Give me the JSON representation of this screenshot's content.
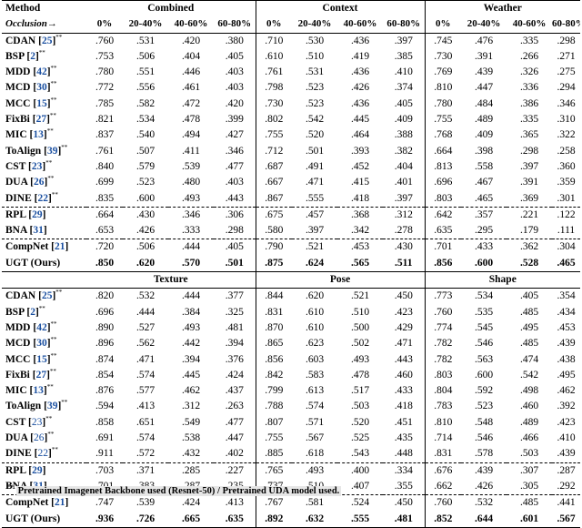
{
  "header": {
    "method": "Method",
    "occlusion": "Occlusion→",
    "bins": [
      "0%",
      "20-40%",
      "40-60%",
      "60-80%"
    ]
  },
  "panels": [
    {
      "groups": [
        "Combined",
        "Context",
        "Weather"
      ],
      "rows": [
        {
          "name": "CDAN",
          "ref": "25",
          "ref_style": "blue",
          "ast": true,
          "bold": false,
          "values": [
            ".760",
            ".531",
            ".420",
            ".380",
            ".710",
            ".530",
            ".436",
            ".397",
            ".745",
            ".476",
            ".335",
            ".298"
          ]
        },
        {
          "name": "BSP",
          "ref": "2",
          "ref_style": "blue",
          "ast": true,
          "bold": false,
          "values": [
            ".753",
            ".506",
            ".404",
            ".405",
            ".610",
            ".510",
            ".419",
            ".385",
            ".730",
            ".391",
            ".266",
            ".271"
          ]
        },
        {
          "name": "MDD",
          "ref": "42",
          "ref_style": "blue",
          "ast": true,
          "bold": false,
          "values": [
            ".780",
            ".551",
            ".446",
            ".403",
            ".761",
            ".531",
            ".436",
            ".410",
            ".769",
            ".439",
            ".326",
            ".275"
          ]
        },
        {
          "name": "MCD",
          "ref": "30",
          "ref_style": "blue",
          "ast": true,
          "bold": false,
          "values": [
            ".772",
            ".556",
            ".461",
            ".403",
            ".798",
            ".523",
            ".426",
            ".374",
            ".810",
            ".447",
            ".336",
            ".294"
          ]
        },
        {
          "name": "MCC",
          "ref": "15",
          "ref_style": "blue",
          "ast": true,
          "bold": false,
          "values": [
            ".785",
            ".582",
            ".472",
            ".420",
            ".730",
            ".523",
            ".436",
            ".405",
            ".780",
            ".484",
            ".386",
            ".346"
          ]
        },
        {
          "name": "FixBi",
          "ref": "27",
          "ref_style": "blue",
          "ast": true,
          "bold": false,
          "values": [
            ".821",
            ".534",
            ".478",
            ".399",
            ".802",
            ".542",
            ".445",
            ".409",
            ".755",
            ".489",
            ".335",
            ".310"
          ]
        },
        {
          "name": "MIC",
          "ref": "13",
          "ref_style": "blue",
          "ast": true,
          "bold": false,
          "values": [
            ".837",
            ".540",
            ".494",
            ".427",
            ".755",
            ".520",
            ".464",
            ".388",
            ".768",
            ".409",
            ".365",
            ".322"
          ]
        },
        {
          "name": "ToAlign",
          "ref": "39",
          "ref_style": "blue",
          "ast": true,
          "bold": false,
          "values": [
            ".761",
            ".507",
            ".411",
            ".346",
            ".712",
            ".501",
            ".393",
            ".382",
            ".664",
            ".398",
            ".298",
            ".258"
          ]
        },
        {
          "name": "CST",
          "ref": "23",
          "ref_style": "blue",
          "ast": true,
          "bold": false,
          "values": [
            ".840",
            ".579",
            ".539",
            ".477",
            ".687",
            ".491",
            ".452",
            ".404",
            ".813",
            ".558",
            ".397",
            ".360"
          ]
        },
        {
          "name": "DUA",
          "ref": "26",
          "ref_style": "blue",
          "ast": true,
          "bold": false,
          "values": [
            ".699",
            ".523",
            ".480",
            ".403",
            ".667",
            ".471",
            ".415",
            ".401",
            ".696",
            ".467",
            ".391",
            ".359"
          ]
        },
        {
          "name": "DINE",
          "ref": "22",
          "ref_style": "blue",
          "ast": true,
          "bold": false,
          "values": [
            ".835",
            ".600",
            ".493",
            ".443",
            ".867",
            ".555",
            ".418",
            ".397",
            ".803",
            ".465",
            ".369",
            ".301"
          ]
        },
        {
          "name": "RPL",
          "ref": "29",
          "ref_style": "blue",
          "ast": false,
          "bold": false,
          "rule": "dash",
          "values": [
            ".664",
            ".430",
            ".346",
            ".306",
            ".675",
            ".457",
            ".368",
            ".312",
            ".642",
            ".357",
            ".221",
            ".122"
          ]
        },
        {
          "name": "BNA",
          "ref": "31",
          "ref_style": "blue",
          "ast": false,
          "bold": false,
          "values": [
            ".653",
            ".426",
            ".333",
            ".298",
            ".580",
            ".397",
            ".342",
            ".278",
            ".635",
            ".295",
            ".179",
            ".111"
          ]
        },
        {
          "name": "CompNet",
          "ref": "21",
          "ref_style": "blue",
          "ast": false,
          "bold": false,
          "rule": "dash",
          "values": [
            ".720",
            ".506",
            ".444",
            ".405",
            ".790",
            ".521",
            ".453",
            ".430",
            ".701",
            ".433",
            ".362",
            ".304"
          ]
        },
        {
          "name": "UGT (Ours)",
          "ref": "",
          "ast": false,
          "bold": true,
          "values": [
            ".850",
            ".620",
            ".570",
            ".501",
            ".875",
            ".624",
            ".565",
            ".511",
            ".856",
            ".600",
            ".528",
            ".465"
          ]
        }
      ]
    },
    {
      "groups": [
        "Texture",
        "Pose",
        "Shape"
      ],
      "rows": [
        {
          "name": "CDAN",
          "ref": "25",
          "ref_style": "blue",
          "ast": true,
          "bold": false,
          "values": [
            ".820",
            ".532",
            ".444",
            ".377",
            ".844",
            ".620",
            ".521",
            ".450",
            ".773",
            ".534",
            ".405",
            ".354"
          ]
        },
        {
          "name": "BSP",
          "ref": "2",
          "ref_style": "blue",
          "ast": true,
          "bold": false,
          "values": [
            ".696",
            ".444",
            ".384",
            ".325",
            ".831",
            ".610",
            ".510",
            ".423",
            ".760",
            ".535",
            ".485",
            ".434"
          ]
        },
        {
          "name": "MDD",
          "ref": "42",
          "ref_style": "blue",
          "ast": true,
          "bold": false,
          "values": [
            ".890",
            ".527",
            ".493",
            ".481",
            ".870",
            ".610",
            ".500",
            ".429",
            ".774",
            ".545",
            ".495",
            ".453"
          ]
        },
        {
          "name": "MCD",
          "ref": "30",
          "ref_style": "blue",
          "ast": true,
          "bold": false,
          "values": [
            ".896",
            ".562",
            ".442",
            ".394",
            ".865",
            ".623",
            ".502",
            ".471",
            ".782",
            ".546",
            ".485",
            ".439"
          ]
        },
        {
          "name": "MCC",
          "ref": "15",
          "ref_style": "blue",
          "ast": true,
          "bold": false,
          "values": [
            ".874",
            ".471",
            ".394",
            ".376",
            ".856",
            ".603",
            ".493",
            ".443",
            ".782",
            ".563",
            ".474",
            ".438"
          ]
        },
        {
          "name": "FixBi",
          "ref": "27",
          "ref_style": "blue",
          "ast": true,
          "bold": false,
          "values": [
            ".854",
            ".574",
            ".445",
            ".424",
            ".842",
            ".583",
            ".478",
            ".460",
            ".803",
            ".600",
            ".542",
            ".495"
          ]
        },
        {
          "name": "MIC",
          "ref": "13",
          "ref_style": "blue",
          "ast": true,
          "bold": false,
          "values": [
            ".876",
            ".577",
            ".462",
            ".437",
            ".799",
            ".613",
            ".517",
            ".433",
            ".804",
            ".592",
            ".498",
            ".462"
          ]
        },
        {
          "name": "ToAlign",
          "ref": "39",
          "ref_style": "blue",
          "ast": true,
          "bold": false,
          "values": [
            ".594",
            ".413",
            ".312",
            ".263",
            ".788",
            ".574",
            ".503",
            ".418",
            ".783",
            ".523",
            ".460",
            ".392"
          ]
        },
        {
          "name": "CST",
          "ref": "23",
          "ref_style": "plain",
          "ast": true,
          "bold": false,
          "values": [
            ".858",
            ".651",
            ".549",
            ".477",
            ".807",
            ".571",
            ".520",
            ".451",
            ".810",
            ".548",
            ".489",
            ".423"
          ]
        },
        {
          "name": "DUA",
          "ref": "26",
          "ref_style": "plain",
          "ast": true,
          "bold": false,
          "values": [
            ".691",
            ".574",
            ".538",
            ".447",
            ".755",
            ".567",
            ".525",
            ".435",
            ".714",
            ".546",
            ".466",
            ".410"
          ]
        },
        {
          "name": "DINE",
          "ref": "22",
          "ref_style": "plain",
          "ast": true,
          "bold": false,
          "values": [
            ".911",
            ".572",
            ".432",
            ".402",
            ".885",
            ".618",
            ".543",
            ".448",
            ".831",
            ".578",
            ".503",
            ".439"
          ]
        },
        {
          "name": "RPL",
          "ref": "29",
          "ref_style": "blue",
          "ast": false,
          "bold": false,
          "rule": "dash",
          "values": [
            ".703",
            ".371",
            ".285",
            ".227",
            ".765",
            ".493",
            ".400",
            ".334",
            ".676",
            ".439",
            ".307",
            ".287"
          ]
        },
        {
          "name": "BNA",
          "ref": "31",
          "ref_style": "blue",
          "ast": false,
          "bold": false,
          "values": [
            ".701",
            ".383",
            ".287",
            ".235",
            ".737",
            ".510",
            ".407",
            ".355",
            ".662",
            ".426",
            ".305",
            ".292"
          ]
        },
        {
          "name": "CompNet",
          "ref": "21",
          "ref_style": "blue",
          "ast": false,
          "bold": false,
          "rule": "dash",
          "values": [
            ".747",
            ".539",
            ".424",
            ".413",
            ".767",
            ".581",
            ".524",
            ".450",
            ".760",
            ".532",
            ".485",
            ".441"
          ]
        },
        {
          "name": "UGT (Ours)",
          "ref": "",
          "ast": false,
          "bold": true,
          "values": [
            ".936",
            ".726",
            ".665",
            ".635",
            ".892",
            ".632",
            ".555",
            ".481",
            ".852",
            ".644",
            ".601",
            ".567"
          ]
        }
      ]
    }
  ],
  "footnote": {
    "marker": "**",
    "text": "Pretrained Imagenet Backbone used (Resnet-50) / Pretrained UDA model used."
  }
}
